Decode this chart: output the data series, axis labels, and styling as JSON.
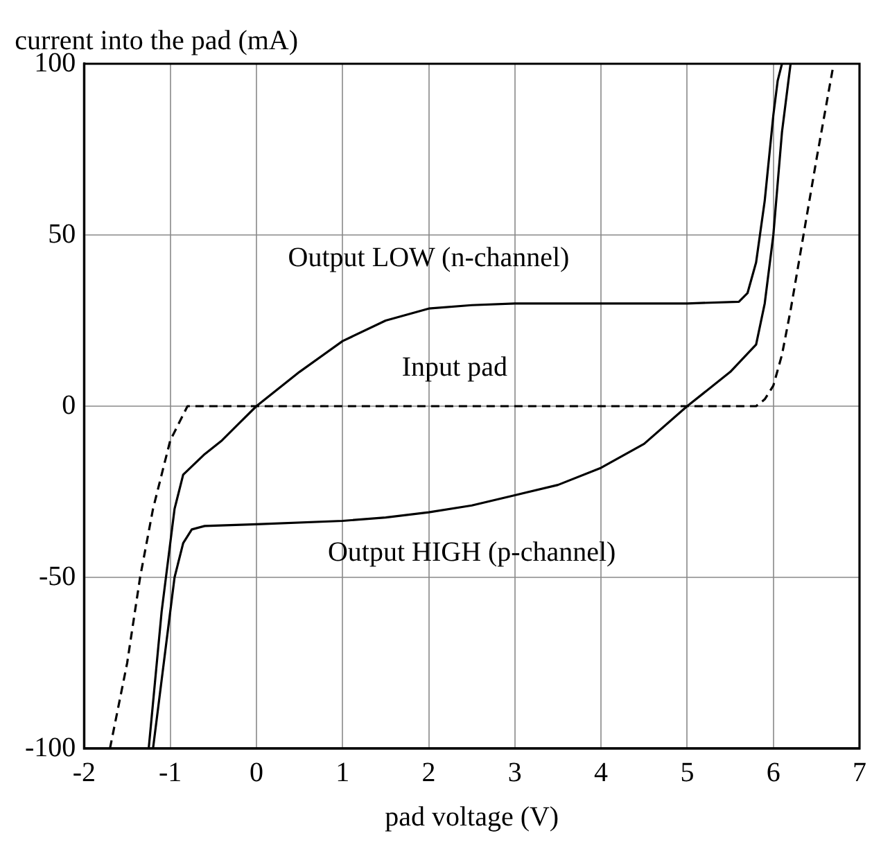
{
  "chart_data": {
    "type": "line",
    "xlabel": "pad voltage (V)",
    "ylabel": "current into the pad (mA)",
    "xlim": [
      -2,
      7
    ],
    "xticks": [
      -2,
      -1,
      0,
      1,
      2,
      3,
      4,
      5,
      6,
      7
    ],
    "ylim": [
      -100,
      100
    ],
    "yticks": [
      -100,
      -50,
      0,
      50,
      100
    ],
    "grid": true,
    "legend": false,
    "marker": "none",
    "series": [
      {
        "name": "Output LOW (n-channel)",
        "color": "#000000",
        "line_style": "solid",
        "x": [
          -1.25,
          -1.1,
          -0.95,
          -0.85,
          -0.6,
          -0.4,
          -0.2,
          0,
          0.5,
          1,
          1.5,
          2,
          2.5,
          3,
          4,
          5,
          5.6,
          5.7,
          5.8,
          5.9,
          6.0,
          6.05,
          6.1
        ],
        "values": [
          -100,
          -60,
          -30,
          -20,
          -14,
          -10,
          -5,
          0,
          10,
          19,
          25,
          28.5,
          29.5,
          30,
          30,
          30,
          30.5,
          33,
          42,
          60,
          85,
          95,
          100
        ]
      },
      {
        "name": "Input pad",
        "color": "#000000",
        "line_style": "dashed",
        "x": [
          -1.7,
          -1.5,
          -1.35,
          -1.2,
          -1.0,
          -0.8,
          0,
          2,
          4,
          5.8,
          5.9,
          6.0,
          6.1,
          6.2,
          6.35,
          6.5,
          6.6,
          6.7
        ],
        "values": [
          -100,
          -75,
          -50,
          -30,
          -10,
          0,
          0,
          0,
          0,
          0,
          2,
          6,
          15,
          28,
          50,
          72,
          86,
          100
        ]
      },
      {
        "name": "Output HIGH (p-channel)",
        "color": "#000000",
        "line_style": "solid",
        "x": [
          -1.2,
          -1.05,
          -0.95,
          -0.85,
          -0.75,
          -0.6,
          0,
          1,
          1.5,
          2,
          2.5,
          3,
          3.5,
          4,
          4.5,
          5,
          5.5,
          5.8,
          5.9,
          6.0,
          6.1,
          6.2
        ],
        "values": [
          -100,
          -70,
          -50,
          -40,
          -36,
          -35,
          -34.5,
          -33.5,
          -32.5,
          -31,
          -29,
          -26,
          -23,
          -18,
          -11,
          0,
          10,
          18,
          30,
          50,
          80,
          100
        ]
      }
    ]
  }
}
